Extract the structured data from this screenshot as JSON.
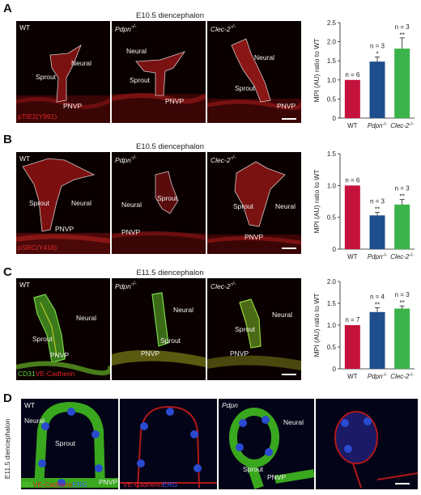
{
  "colors": {
    "wt": "#c4123c",
    "pdpn": "#1f4e8c",
    "clec2": "#3bb34a",
    "red_stain": "#e0282a",
    "green_stain": "#5fd13a",
    "blue_stain": "#3a5cff"
  },
  "panels": {
    "A": {
      "letter": "A",
      "title": "E10.5 diencephalon",
      "images": [
        {
          "genotype": "WT",
          "labels": {
            "sprout": "Sprout",
            "neural": "Neural",
            "pnvp": "PNVP"
          }
        },
        {
          "genotype": "Pdpn",
          "sup": "-/-",
          "labels": {
            "sprout": "Sprout",
            "neural": "Neural",
            "pnvp": "PNVP"
          }
        },
        {
          "genotype": "Clec-2",
          "sup": "-/-",
          "labels": {
            "sprout": "Sprout",
            "neural": "Neural",
            "pnvp": "PNVP"
          }
        }
      ],
      "stain": "pTIE2(Y991)"
    },
    "B": {
      "letter": "B",
      "title": "E10.5 diencephalon",
      "images": [
        {
          "genotype": "WT",
          "labels": {
            "sprout": "Sprout",
            "neural": "Neural",
            "pnvp": "PNVP"
          }
        },
        {
          "genotype": "Pdpn",
          "sup": "-/-",
          "labels": {
            "sprout": "Sprout",
            "neural": "Neural",
            "pnvp": "PNVP"
          }
        },
        {
          "genotype": "Clec-2",
          "sup": "-/-",
          "labels": {
            "sprout": "Sprout",
            "neural": "Neural",
            "pnvp": "PNVP"
          }
        }
      ],
      "stain": "pSRC(Y418)"
    },
    "C": {
      "letter": "C",
      "title": "E11.5 diencephalon",
      "images": [
        {
          "genotype": "WT",
          "labels": {
            "sprout": "Sprout",
            "neural": "Neural",
            "pnvp": "PNVP"
          }
        },
        {
          "genotype": "Pdpn",
          "sup": "-/-",
          "labels": {
            "sprout": "Sprout",
            "neural": "Neural",
            "pnvp": "PNVP"
          }
        },
        {
          "genotype": "Clec-2",
          "sup": "-/-",
          "labels": {
            "sprout": "Sprout",
            "neural": "Neural",
            "pnvp": "PNVP"
          }
        }
      ],
      "stain_parts": [
        "CD31",
        "VE-Cadherin"
      ]
    },
    "D": {
      "letter": "D",
      "side_title": "E11.5 diencephalon",
      "img1": {
        "genotype": "WT",
        "neural": "Neural",
        "sprout": "Sprout",
        "pnvp": "PNVP"
      },
      "img3": {
        "genotype": "Pdpn",
        "neural": "Neural",
        "sprout": "Sprout",
        "pnvp": "PNVP"
      },
      "stain1_parts": [
        "IB4",
        "VE-Cadherin",
        "ERG"
      ],
      "stain2_parts": [
        "VE-Cadherin",
        "ERG"
      ]
    }
  },
  "chart_data": [
    {
      "panel": "A",
      "type": "bar",
      "categories": [
        "WT",
        "Pdpn-/-",
        "Clec-2-/-"
      ],
      "values": [
        1.0,
        1.48,
        1.82
      ],
      "errors": [
        0,
        0.12,
        0.28
      ],
      "n_labels": [
        "n = 6",
        "n = 3",
        "n = 3"
      ],
      "significance": [
        "",
        "*",
        "**"
      ],
      "ylabel": "MPI (AU) ratio to WT",
      "ylim": [
        0,
        2.5
      ],
      "yticks": [
        "0",
        "0.5",
        "1.0",
        "1.5",
        "2.0",
        "2.5"
      ]
    },
    {
      "panel": "B",
      "type": "bar",
      "categories": [
        "WT",
        "Pdpn-/-",
        "Clec-2-/-"
      ],
      "values": [
        1.0,
        0.53,
        0.7
      ],
      "errors": [
        0,
        0.05,
        0.08
      ],
      "n_labels": [
        "n = 6",
        "n = 3",
        "n = 3"
      ],
      "significance": [
        "",
        "**",
        "**"
      ],
      "ylabel": "MPI (AU) ratio to WT",
      "ylim": [
        0,
        1.5
      ],
      "yticks": [
        "0",
        "0.5",
        "1.0",
        "1.5"
      ]
    },
    {
      "panel": "C",
      "type": "bar",
      "categories": [
        "WT",
        "Pdpn-/-",
        "Clec-2-/-"
      ],
      "values": [
        1.0,
        1.3,
        1.38
      ],
      "errors": [
        0,
        0.1,
        0.06
      ],
      "n_labels": [
        "n = 7",
        "n = 4",
        "n = 3"
      ],
      "significance": [
        "",
        "**",
        "**"
      ],
      "ylabel": "MPI (AU) ratio to WT",
      "ylim": [
        0,
        2.0
      ],
      "yticks": [
        "0",
        "0.5",
        "1.0",
        "1.5",
        "2.0"
      ]
    }
  ]
}
